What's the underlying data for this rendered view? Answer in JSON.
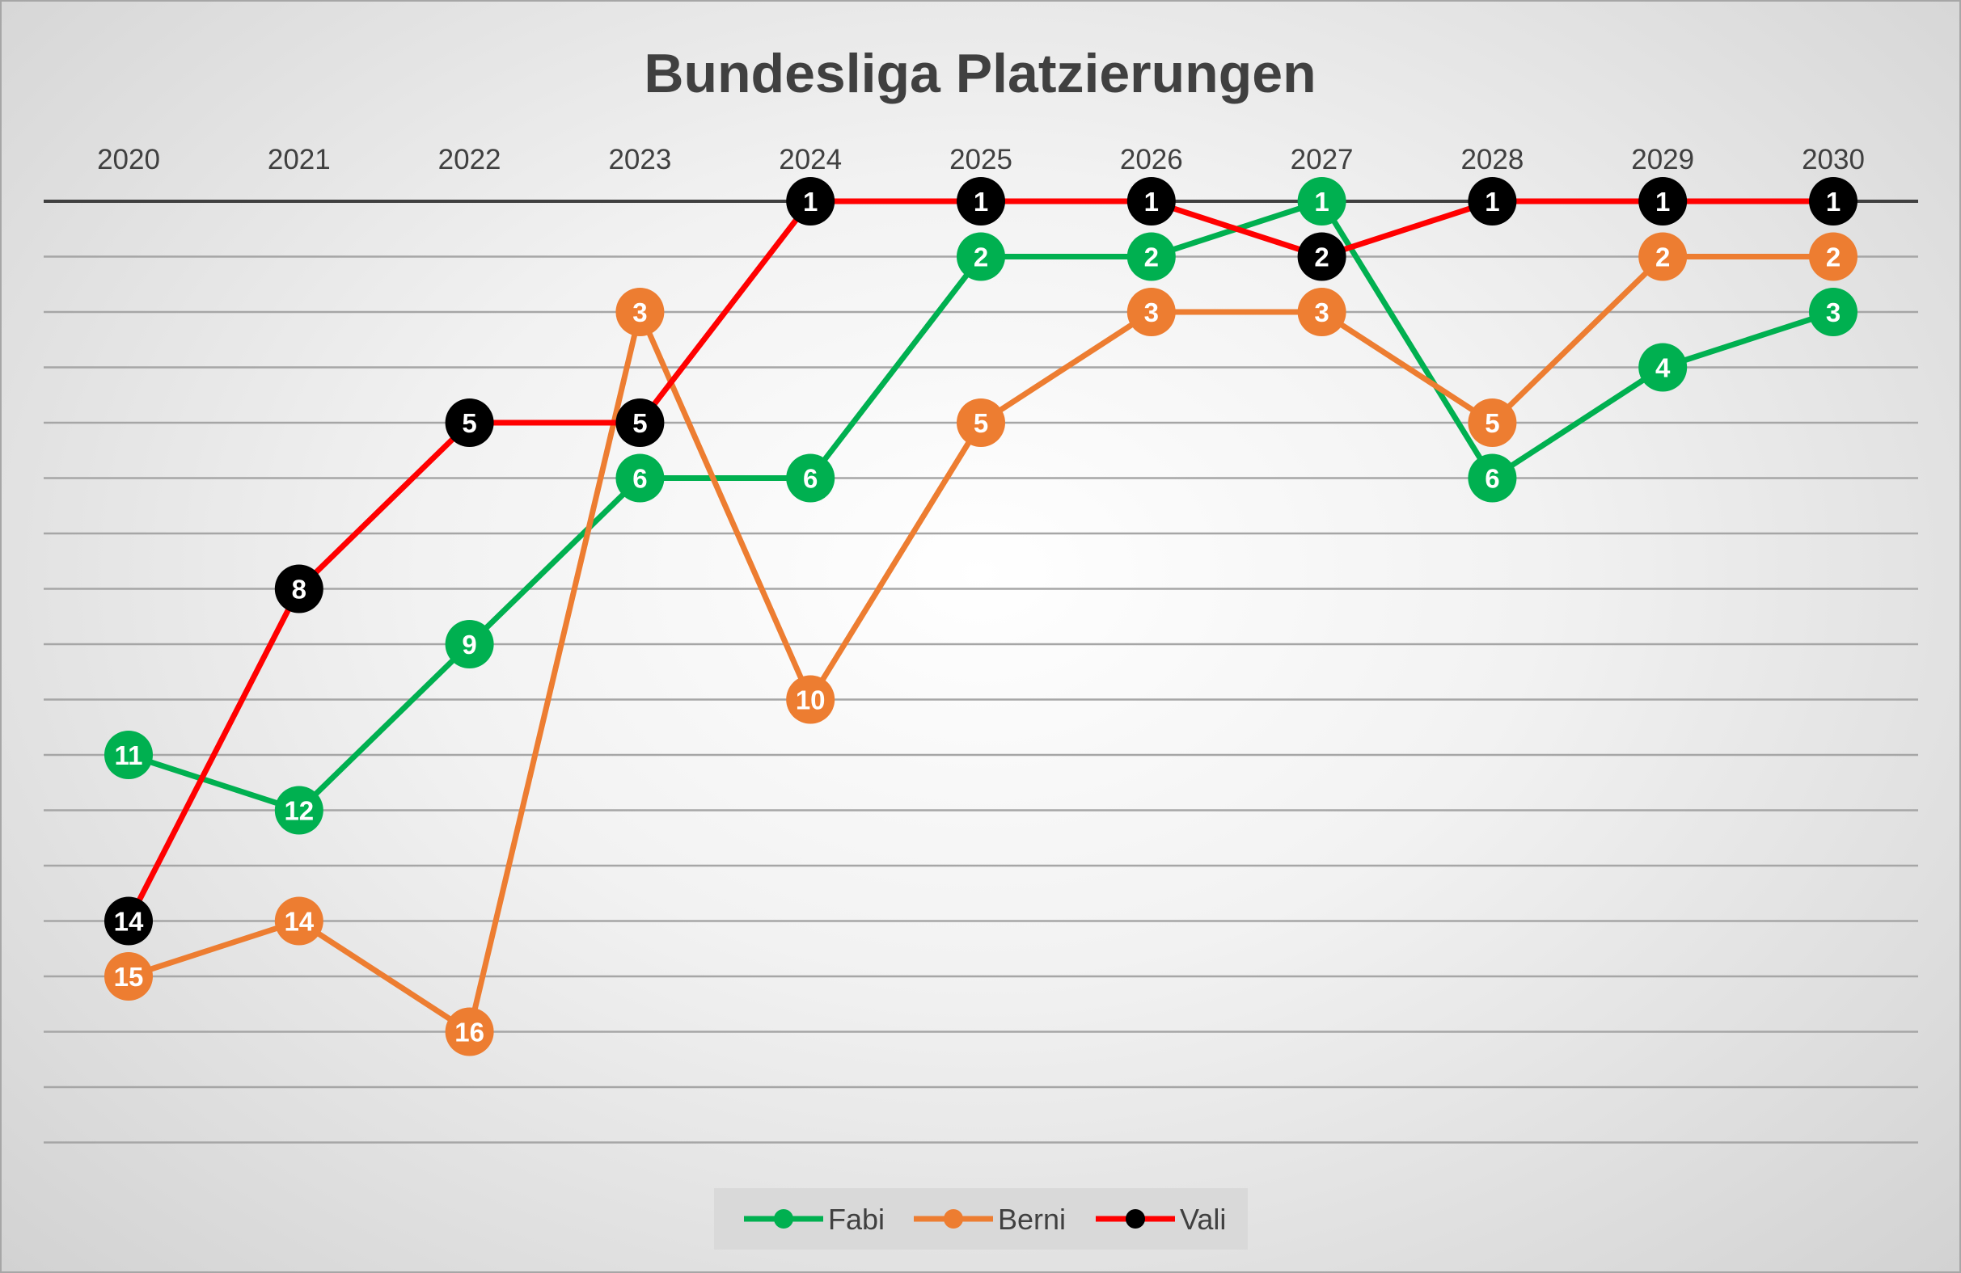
{
  "chart_data": {
    "type": "line",
    "title": "Bundesliga Platzierungen",
    "x": [
      "2020",
      "2021",
      "2022",
      "2023",
      "2024",
      "2025",
      "2026",
      "2027",
      "2028",
      "2029",
      "2030"
    ],
    "y_axis": {
      "reversed": true,
      "range": [
        1,
        18
      ],
      "tick_labels_shown": false,
      "gridlines": true
    },
    "x_axis_position": "top",
    "legend": "bottom",
    "series": [
      {
        "name": "Fabi",
        "color": "#00b050",
        "marker_color": "#00b050",
        "values": [
          11,
          12,
          9,
          6,
          6,
          2,
          2,
          1,
          6,
          4,
          3
        ]
      },
      {
        "name": "Berni",
        "color": "#ed7d31",
        "marker_color": "#ed7d31",
        "values": [
          15,
          14,
          16,
          3,
          10,
          5,
          3,
          3,
          5,
          2,
          2
        ]
      },
      {
        "name": "Vali",
        "color": "#ff0000",
        "marker_color": "#000000",
        "values": [
          14,
          8,
          5,
          5,
          1,
          1,
          1,
          2,
          1,
          1,
          1
        ]
      }
    ]
  }
}
